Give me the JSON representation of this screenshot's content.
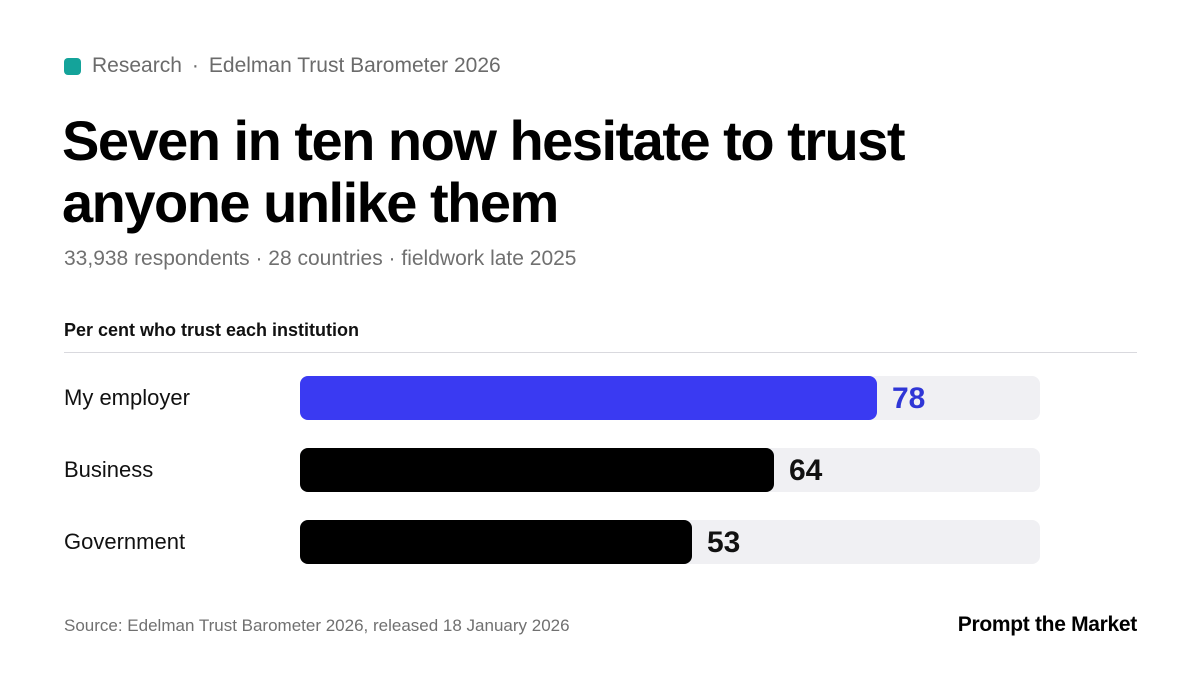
{
  "header": {
    "section": "Research",
    "separator": "·",
    "publication": "Edelman Trust Barometer 2026",
    "headline_line1": "Seven in ten now hesitate to trust",
    "headline_line2": "anyone unlike them",
    "subline": "33,938 respondents · 28 countries · fieldwork late 2025"
  },
  "colors": {
    "accent_dot": "#14a39a",
    "highlight_bar": "#3a3af2",
    "highlight_value": "#2f36d6",
    "default_bar": "#000000",
    "track": "#f0f0f3"
  },
  "chart_data": {
    "type": "bar",
    "orientation": "horizontal",
    "title": "Per cent who trust each institution",
    "categories": [
      "My employer",
      "Business",
      "Government"
    ],
    "values": [
      78,
      64,
      53
    ],
    "highlight": [
      "My employer"
    ],
    "xlim": [
      0,
      100
    ],
    "grid": false,
    "data_labels": true
  },
  "footer": {
    "source": "Source: Edelman Trust Barometer 2026, released 18 January 2026",
    "brand": "Prompt the Market"
  }
}
